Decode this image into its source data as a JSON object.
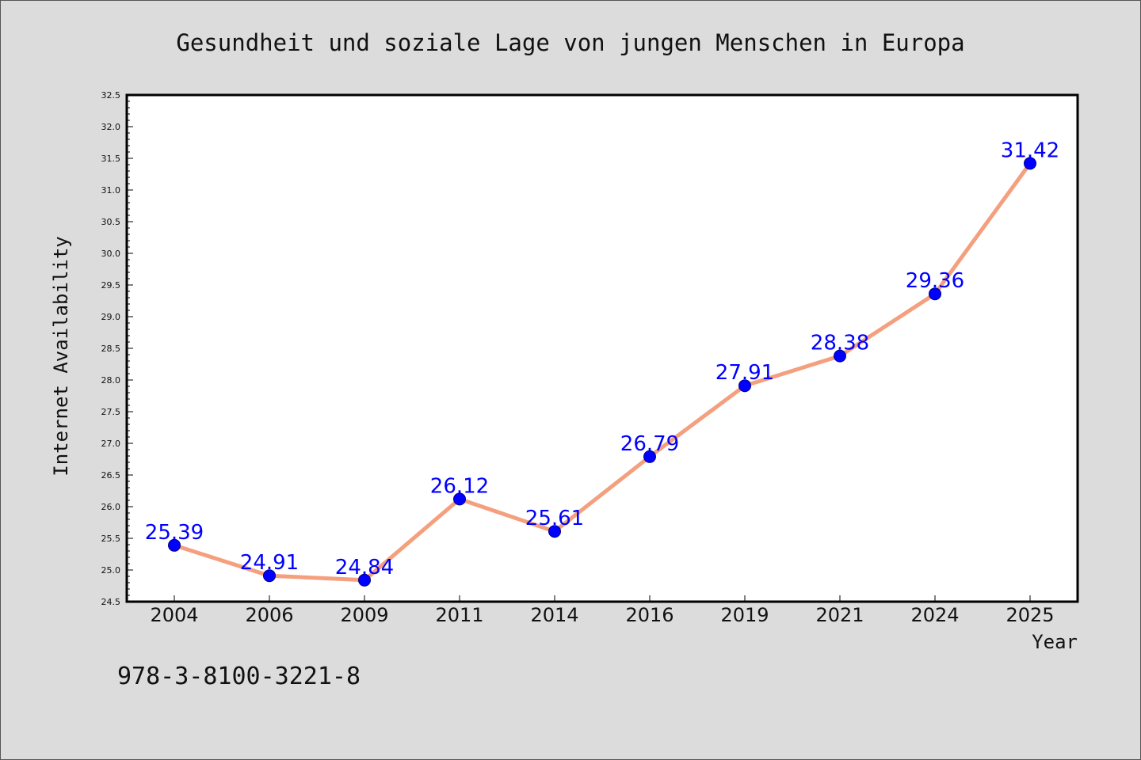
{
  "footer": {
    "isbn": "978-3-8100-3221-8"
  },
  "chart_data": {
    "type": "line",
    "title": "Gesundheit und soziale Lage von jungen Menschen in Europa",
    "xlabel": "Year",
    "ylabel": "Internet Availability",
    "categories": [
      "2004",
      "2006",
      "2009",
      "2011",
      "2014",
      "2016",
      "2019",
      "2021",
      "2024",
      "2025"
    ],
    "series": [
      {
        "values": [
          25.39,
          24.91,
          24.84,
          26.12,
          25.61,
          26.79,
          27.91,
          28.38,
          29.36,
          31.42
        ]
      }
    ],
    "data_labels": [
      "25.39",
      "24.91",
      "24.84",
      "26.12",
      "25.61",
      "26.79",
      "27.91",
      "28.38",
      "29.36",
      "31.42"
    ],
    "ylim": [
      24.5,
      32.5
    ],
    "yticks": [
      "24.5",
      "25.0",
      "25.5",
      "26.0",
      "26.5",
      "27.0",
      "27.5",
      "28.0",
      "28.5",
      "29.0",
      "29.5",
      "30.0",
      "30.5",
      "31.0",
      "31.5",
      "32.0",
      "32.5"
    ],
    "grid": false,
    "colors": {
      "line": "#f4a07f",
      "marker": "#0000ff",
      "label": "#0000ff",
      "background": "#dcdcdc",
      "plot_background": "#ffffff"
    }
  }
}
